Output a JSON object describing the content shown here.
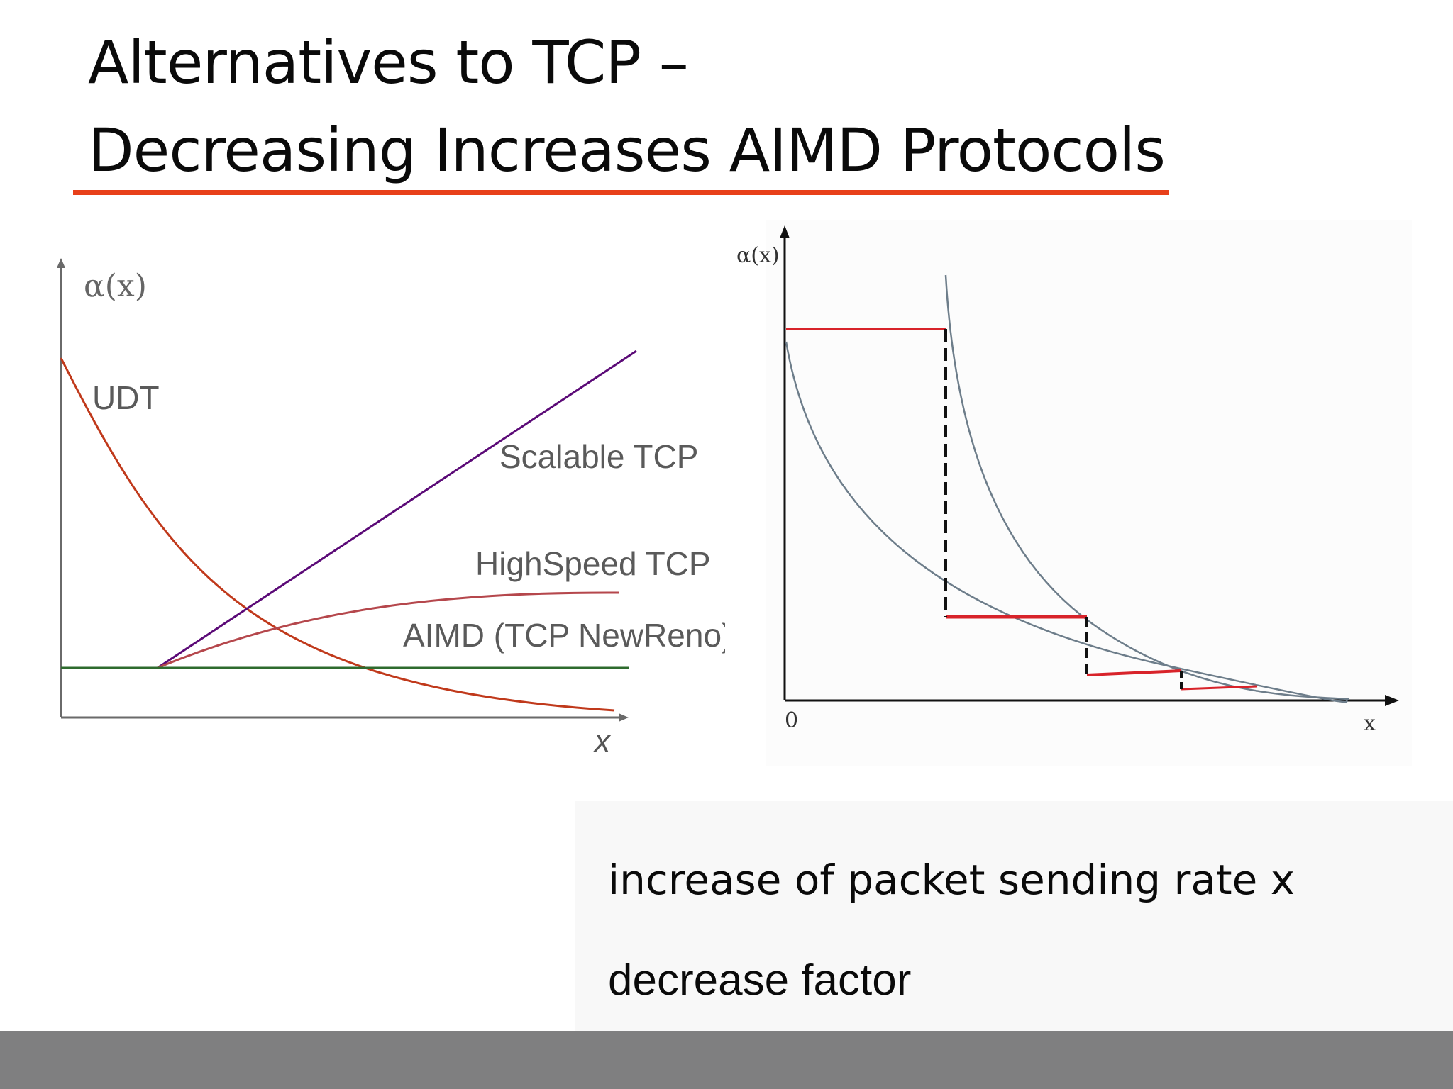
{
  "title": {
    "line1": "Alternatives to TCP –",
    "line2": "Decreasing Increases AIMD Protocols"
  },
  "colors": {
    "rule": "#e8401a",
    "udt": "#c0391b",
    "scalable": "#5b0a77",
    "highspeed": "#b5474c",
    "aimd": "#2e6b2e",
    "right_red": "#d8232a",
    "right_curve": "#6d7d8a",
    "footer": "#7f7f80"
  },
  "left_diagram": {
    "y_axis_label": "α(x)",
    "x_axis_label": "x",
    "labels": {
      "udt": "UDT",
      "scalable": "Scalable TCP",
      "highspeed": "HighSpeed TCP",
      "aimd": "AIMD (TCP NewReno)"
    }
  },
  "right_diagram": {
    "y_axis_label": "α(x)",
    "x_axis_label": "x",
    "origin_label": "0"
  },
  "bullets": [
    "increase of packet sending rate x",
    "decrease factor"
  ]
}
